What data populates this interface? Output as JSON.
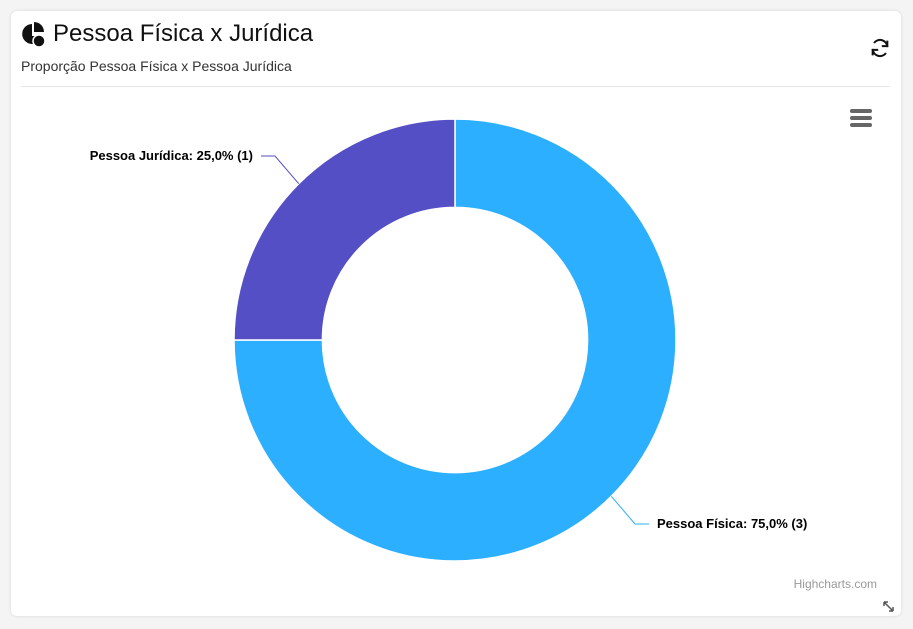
{
  "chart_data": {
    "type": "pie",
    "title": "Pessoa Física x Jurídica",
    "subtitle": "Proporção Pessoa Física x Pessoa Jurídica",
    "values": [
      75,
      25
    ],
    "value_labels": [
      "Pessoa Física: 75,0% (3)",
      "Pessoa Jurídica: 25,0% (1)"
    ],
    "colors": [
      "#2caffe",
      "#544fc5"
    ],
    "inner_size_ratio": 0.6,
    "credits": "Highcharts.com"
  }
}
